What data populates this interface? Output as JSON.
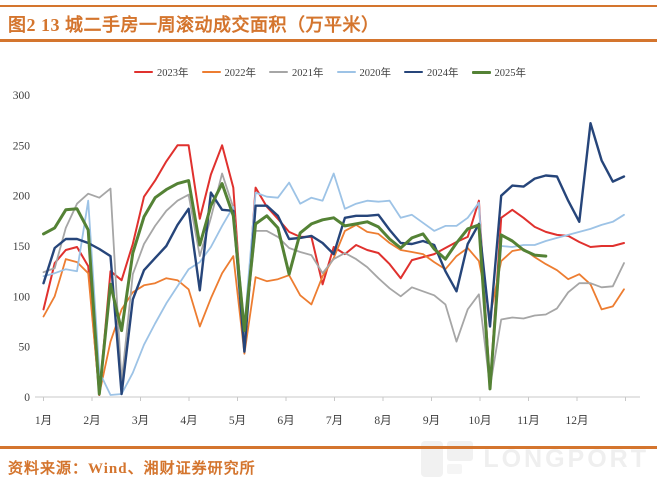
{
  "header": {
    "title": "图2 13 城二手房一周滚动成交面积（万平米）"
  },
  "footer": {
    "source": "资料来源：Wind、湘财证券研究所"
  },
  "watermark": {
    "text": "LONGPORT"
  },
  "colors": {
    "accent": "#d4752e",
    "axis_line": "#c8c8c8",
    "axis_text": "#3f3f3f",
    "legend_text": "#404040"
  },
  "chart_data": {
    "type": "line",
    "title": "13城二手房一周滚动成交面积",
    "unit": "万平米",
    "x_unit": "week of year (53 weekly points, Jan–Dec)",
    "x_labels": [
      "1月",
      "2月",
      "3月",
      "4月",
      "5月",
      "6月",
      "7月",
      "8月",
      "9月",
      "10月",
      "11月",
      "12月"
    ],
    "ylim": [
      0,
      300
    ],
    "y_ticks": [
      0,
      50,
      100,
      150,
      200,
      250,
      300
    ],
    "grid": false,
    "legend_position": "top",
    "series": [
      {
        "name": "2023年",
        "color": "#e0312e",
        "width": 2,
        "values": [
          87,
          133,
          146,
          149,
          130,
          2,
          125,
          116,
          152,
          199,
          215,
          234,
          250,
          250,
          177,
          221,
          250,
          208,
          50,
          208,
          189,
          177,
          164,
          159,
          159,
          112,
          149,
          142,
          151,
          146,
          143,
          132,
          118,
          136,
          139,
          142,
          148,
          154,
          159,
          195,
          10,
          178,
          186,
          178,
          169,
          164,
          161,
          160,
          154,
          149,
          150,
          150,
          153
        ]
      },
      {
        "name": "2022年",
        "color": "#ed7d31",
        "width": 1.8,
        "values": [
          80,
          100,
          137,
          134,
          123,
          3,
          55,
          87,
          104,
          111,
          113,
          118,
          116,
          107,
          70,
          98,
          123,
          140,
          43,
          119,
          115,
          117,
          121,
          101,
          92,
          120,
          138,
          165,
          171,
          164,
          162,
          153,
          146,
          144,
          142,
          134,
          127,
          140,
          148,
          135,
          80,
          135,
          145,
          147,
          139,
          132,
          126,
          117,
          122,
          112,
          87,
          90,
          107
        ]
      },
      {
        "name": "2021年",
        "color": "#a6a6a6",
        "width": 1.8,
        "values": [
          124,
          128,
          168,
          192,
          202,
          198,
          207,
          15,
          122,
          152,
          170,
          185,
          195,
          201,
          140,
          178,
          222,
          188,
          60,
          165,
          165,
          159,
          148,
          144,
          141,
          123,
          137,
          143,
          137,
          129,
          118,
          108,
          100,
          109,
          105,
          101,
          92,
          55,
          87,
          102,
          10,
          77,
          79,
          78,
          81,
          82,
          88,
          104,
          113,
          113,
          109,
          110,
          133
        ]
      },
      {
        "name": "2020年",
        "color": "#9dc3e6",
        "width": 1.8,
        "values": [
          120,
          123,
          127,
          125,
          195,
          25,
          2,
          3,
          24,
          52,
          73,
          93,
          110,
          127,
          134,
          149,
          170,
          189,
          70,
          203,
          199,
          198,
          213,
          192,
          198,
          195,
          222,
          187,
          192,
          195,
          194,
          195,
          178,
          181,
          173,
          165,
          170,
          170,
          178,
          193,
          10,
          150,
          149,
          151,
          151,
          155,
          158,
          161,
          164,
          167,
          171,
          174,
          181
        ]
      },
      {
        "name": "2024年",
        "color": "#26457a",
        "width": 2.4,
        "values": [
          113,
          148,
          157,
          157,
          153,
          147,
          140,
          3,
          97,
          126,
          138,
          150,
          171,
          187,
          106,
          203,
          186,
          185,
          45,
          190,
          190,
          180,
          157,
          158,
          160,
          153,
          142,
          178,
          180,
          180,
          181,
          166,
          153,
          152,
          155,
          151,
          125,
          105,
          152,
          172,
          70,
          200,
          210,
          209,
          217,
          220,
          219,
          195,
          174,
          272,
          235,
          214,
          219
        ]
      },
      {
        "name": "2025年",
        "color": "#548235",
        "width": 3,
        "values": [
          162,
          168,
          186,
          187,
          166,
          3,
          112,
          66,
          143,
          179,
          198,
          206,
          212,
          215,
          151,
          190,
          212,
          180,
          66,
          172,
          180,
          168,
          122,
          163,
          172,
          176,
          178,
          170,
          172,
          174,
          169,
          157,
          148,
          158,
          162,
          147,
          137,
          153,
          167,
          171,
          8,
          161,
          155,
          146,
          141,
          140,
          null,
          null,
          null,
          null,
          null,
          null,
          null
        ]
      }
    ]
  }
}
